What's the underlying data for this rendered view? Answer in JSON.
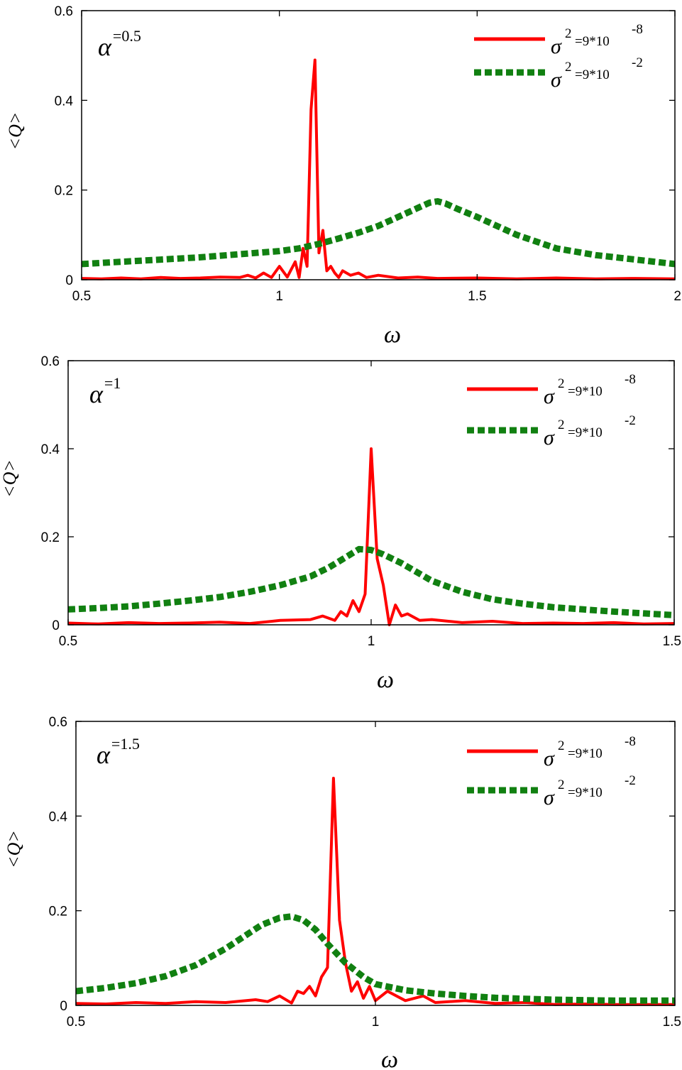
{
  "chart_data": [
    {
      "type": "line",
      "annotation": {
        "symbol": "α",
        "value": "=0.5"
      },
      "xlabel": "ω",
      "ylabel": "<Q>",
      "xlim": [
        0.5,
        2
      ],
      "ylim": [
        0,
        0.6
      ],
      "x_ticks": [
        "0.5",
        "1",
        "1.5",
        "2"
      ],
      "y_ticks": [
        "0",
        "0.2",
        "0.4",
        "0.6"
      ],
      "legend_position": "top-right",
      "series": [
        {
          "legend_symbol": "σ",
          "legend_sup": "2",
          "legend_text": "=9*10",
          "legend_exp": "-8",
          "style": "solid",
          "color": "#ff0000",
          "x": [
            0.5,
            0.55,
            0.6,
            0.65,
            0.7,
            0.75,
            0.8,
            0.85,
            0.9,
            0.92,
            0.94,
            0.96,
            0.98,
            1.0,
            1.02,
            1.04,
            1.05,
            1.06,
            1.07,
            1.08,
            1.09,
            1.1,
            1.11,
            1.12,
            1.13,
            1.14,
            1.15,
            1.16,
            1.18,
            1.2,
            1.22,
            1.25,
            1.3,
            1.35,
            1.4,
            1.5,
            1.6,
            1.7,
            1.8,
            1.9,
            2.0
          ],
          "y": [
            0.003,
            0.002,
            0.004,
            0.002,
            0.005,
            0.003,
            0.004,
            0.006,
            0.005,
            0.01,
            0.004,
            0.015,
            0.005,
            0.03,
            0.006,
            0.04,
            0.005,
            0.07,
            0.03,
            0.38,
            0.49,
            0.06,
            0.11,
            0.02,
            0.03,
            0.015,
            0.005,
            0.02,
            0.01,
            0.015,
            0.005,
            0.01,
            0.004,
            0.006,
            0.003,
            0.004,
            0.002,
            0.004,
            0.002,
            0.003,
            0.002
          ]
        },
        {
          "legend_symbol": "σ",
          "legend_sup": "2",
          "legend_text": "=9*10",
          "legend_exp": "-2",
          "style": "dotted",
          "color": "#118011",
          "x": [
            0.5,
            0.6,
            0.7,
            0.8,
            0.9,
            1.0,
            1.05,
            1.1,
            1.15,
            1.2,
            1.25,
            1.3,
            1.35,
            1.38,
            1.4,
            1.42,
            1.45,
            1.5,
            1.6,
            1.7,
            1.8,
            1.9,
            2.0
          ],
          "y": [
            0.035,
            0.04,
            0.045,
            0.05,
            0.057,
            0.064,
            0.07,
            0.08,
            0.092,
            0.105,
            0.12,
            0.14,
            0.16,
            0.172,
            0.175,
            0.17,
            0.158,
            0.14,
            0.1,
            0.07,
            0.055,
            0.045,
            0.035
          ]
        }
      ]
    },
    {
      "type": "line",
      "annotation": {
        "symbol": "α",
        "value": "=1"
      },
      "xlabel": "ω",
      "ylabel": "<Q>",
      "xlim": [
        0.5,
        1.5
      ],
      "ylim": [
        0,
        0.6
      ],
      "x_ticks": [
        "0.5",
        "1",
        "1.5"
      ],
      "y_ticks": [
        "0",
        "0.2",
        "0.4",
        "0.6"
      ],
      "legend_position": "top-right",
      "series": [
        {
          "legend_symbol": "σ",
          "legend_sup": "2",
          "legend_text": "=9*10",
          "legend_exp": "-8",
          "style": "solid",
          "color": "#ff0000",
          "x": [
            0.5,
            0.55,
            0.6,
            0.65,
            0.7,
            0.75,
            0.8,
            0.85,
            0.9,
            0.92,
            0.94,
            0.95,
            0.96,
            0.97,
            0.98,
            0.99,
            1.0,
            1.01,
            1.02,
            1.03,
            1.04,
            1.05,
            1.06,
            1.08,
            1.1,
            1.15,
            1.2,
            1.25,
            1.3,
            1.35,
            1.4,
            1.45,
            1.5
          ],
          "y": [
            0.004,
            0.002,
            0.005,
            0.003,
            0.004,
            0.006,
            0.003,
            0.01,
            0.012,
            0.02,
            0.01,
            0.03,
            0.02,
            0.055,
            0.03,
            0.07,
            0.4,
            0.15,
            0.09,
            0.0,
            0.045,
            0.02,
            0.025,
            0.01,
            0.012,
            0.005,
            0.008,
            0.003,
            0.004,
            0.003,
            0.005,
            0.002,
            0.003
          ]
        },
        {
          "legend_symbol": "σ",
          "legend_sup": "2",
          "legend_text": "=9*10",
          "legend_exp": "-2",
          "style": "dotted",
          "color": "#118011",
          "x": [
            0.5,
            0.55,
            0.6,
            0.65,
            0.7,
            0.75,
            0.8,
            0.85,
            0.9,
            0.93,
            0.96,
            0.98,
            1.0,
            1.02,
            1.05,
            1.1,
            1.15,
            1.2,
            1.25,
            1.3,
            1.35,
            1.4,
            1.45,
            1.5
          ],
          "y": [
            0.035,
            0.038,
            0.042,
            0.048,
            0.055,
            0.063,
            0.075,
            0.09,
            0.11,
            0.13,
            0.155,
            0.172,
            0.17,
            0.16,
            0.14,
            0.1,
            0.075,
            0.058,
            0.048,
            0.04,
            0.035,
            0.03,
            0.026,
            0.022
          ]
        }
      ]
    },
    {
      "type": "line",
      "annotation": {
        "symbol": "α",
        "value": "=1.5"
      },
      "xlabel": "ω",
      "ylabel": "<Q>",
      "xlim": [
        0.5,
        1.5
      ],
      "ylim": [
        0,
        0.6
      ],
      "x_ticks": [
        "0.5",
        "1",
        "1.5"
      ],
      "y_ticks": [
        "0",
        "0.2",
        "0.4",
        "0.6"
      ],
      "legend_position": "top-right",
      "series": [
        {
          "legend_symbol": "σ",
          "legend_sup": "2",
          "legend_text": "=9*10",
          "legend_exp": "-8",
          "style": "solid",
          "color": "#ff0000",
          "x": [
            0.5,
            0.55,
            0.6,
            0.65,
            0.7,
            0.75,
            0.8,
            0.82,
            0.84,
            0.86,
            0.87,
            0.88,
            0.89,
            0.9,
            0.91,
            0.92,
            0.93,
            0.94,
            0.95,
            0.96,
            0.97,
            0.98,
            0.99,
            1.0,
            1.02,
            1.05,
            1.08,
            1.1,
            1.15,
            1.2,
            1.25,
            1.3,
            1.35,
            1.4,
            1.45,
            1.5
          ],
          "y": [
            0.004,
            0.003,
            0.006,
            0.004,
            0.008,
            0.006,
            0.012,
            0.008,
            0.02,
            0.005,
            0.03,
            0.025,
            0.04,
            0.02,
            0.06,
            0.08,
            0.48,
            0.18,
            0.09,
            0.03,
            0.05,
            0.015,
            0.04,
            0.01,
            0.03,
            0.01,
            0.02,
            0.006,
            0.01,
            0.004,
            0.006,
            0.002,
            0.003,
            0.002,
            0.002,
            0.002
          ]
        },
        {
          "legend_symbol": "σ",
          "legend_sup": "2",
          "legend_text": "=9*10",
          "legend_exp": "-2",
          "style": "dotted",
          "color": "#118011",
          "x": [
            0.5,
            0.55,
            0.6,
            0.65,
            0.7,
            0.75,
            0.78,
            0.81,
            0.84,
            0.86,
            0.88,
            0.9,
            0.92,
            0.95,
            0.98,
            1.0,
            1.05,
            1.1,
            1.15,
            1.2,
            1.25,
            1.3,
            1.35,
            1.4,
            1.45,
            1.5
          ],
          "y": [
            0.03,
            0.037,
            0.047,
            0.062,
            0.085,
            0.12,
            0.145,
            0.17,
            0.185,
            0.188,
            0.18,
            0.16,
            0.13,
            0.09,
            0.06,
            0.045,
            0.032,
            0.025,
            0.02,
            0.016,
            0.014,
            0.012,
            0.011,
            0.01,
            0.01,
            0.01
          ]
        }
      ]
    }
  ]
}
